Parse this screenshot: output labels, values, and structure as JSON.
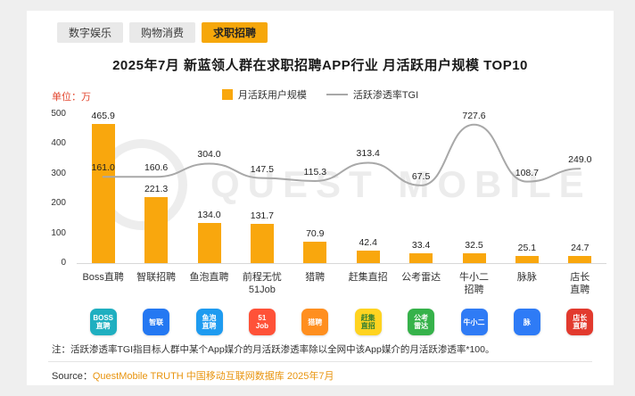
{
  "tabs": [
    {
      "label": "数字娱乐",
      "active": false
    },
    {
      "label": "购物消费",
      "active": false
    },
    {
      "label": "求职招聘",
      "active": true
    }
  ],
  "title": "2025年7月 新蓝领人群在求职招聘APP行业 月活跃用户规模 TOP10",
  "unit_label": "单位：万",
  "legend": {
    "bar": "月活跃用户规模",
    "line": "活跃渗透率TGI"
  },
  "watermark": "QUEST MOBILE",
  "chart_data": {
    "type": "bar",
    "categories": [
      [
        "Boss直聘"
      ],
      [
        "智联招聘"
      ],
      [
        "鱼泡直聘"
      ],
      [
        "前程无忧",
        "51Job"
      ],
      [
        "猎聘"
      ],
      [
        "赶集直招"
      ],
      [
        "公考雷达"
      ],
      [
        "牛小二",
        "招聘"
      ],
      [
        "脉脉"
      ],
      [
        "店长直聘"
      ]
    ],
    "series": [
      {
        "name": "月活跃用户规模",
        "type": "bar",
        "color": "#F9A70D",
        "values": [
          465.9,
          221.3,
          134.0,
          131.7,
          70.9,
          42.4,
          33.4,
          32.5,
          25.1,
          24.7
        ]
      },
      {
        "name": "活跃渗透率TGI",
        "type": "line",
        "color": "#a8a8a8",
        "values": [
          161.0,
          160.6,
          304.0,
          147.5,
          115.3,
          313.4,
          67.5,
          727.6,
          108.7,
          249.0
        ]
      }
    ],
    "title": "2025年7月 新蓝领人群在求职招聘APP行业 月活跃用户规模 TOP10",
    "ylabel": "单位：万",
    "ylim": [
      0,
      500
    ],
    "yticks": [
      0,
      100,
      200,
      300,
      400,
      500
    ],
    "grid": false,
    "legend_position": "top-center"
  },
  "app_icons": [
    {
      "name": "boss-zhipin-app-icon",
      "bg": "#1FAFC0",
      "fg": "#ffffff",
      "lines": [
        "BOSS",
        "直聘"
      ]
    },
    {
      "name": "zhilian-zhaopin-app-icon",
      "bg": "#2478F2",
      "fg": "#ffffff",
      "lines": [
        "智联"
      ]
    },
    {
      "name": "yupao-zhipin-app-icon",
      "bg": "#1E9BF0",
      "fg": "#ffffff",
      "lines": [
        "鱼泡",
        "直聘"
      ]
    },
    {
      "name": "qianchengwuyou-51job-app-icon",
      "bg": "#FF5238",
      "fg": "#ffffff",
      "lines": [
        "51",
        "Job"
      ]
    },
    {
      "name": "liepin-app-icon",
      "bg": "#FF8F1F",
      "fg": "#ffffff",
      "lines": [
        "猎聘"
      ]
    },
    {
      "name": "ganji-zhizhao-app-icon",
      "bg": "#FFD320",
      "fg": "#2E7D32",
      "lines": [
        "赶集",
        "直招"
      ]
    },
    {
      "name": "gongkao-leida-app-icon",
      "bg": "#36B24A",
      "fg": "#ffffff",
      "lines": [
        "公考",
        "雷达"
      ]
    },
    {
      "name": "niuxiaoer-zhaopin-app-icon",
      "bg": "#2F7BF5",
      "fg": "#ffffff",
      "lines": [
        "牛小二"
      ]
    },
    {
      "name": "maimai-app-icon",
      "bg": "#2E7BF6",
      "fg": "#ffffff",
      "lines": [
        "脉"
      ]
    },
    {
      "name": "dianzhang-zhipin-app-icon",
      "bg": "#E23A2E",
      "fg": "#ffffff",
      "lines": [
        "店长",
        "直聘"
      ]
    }
  ],
  "note": "注：活跃渗透率TGI指目标人群中某个App媒介的月活跃渗透率除以全网中该App媒介的月活跃渗透率*100。",
  "source": {
    "label": "Source：",
    "content": "QuestMobile TRUTH 中国移动互联网数据库 2025年7月"
  }
}
